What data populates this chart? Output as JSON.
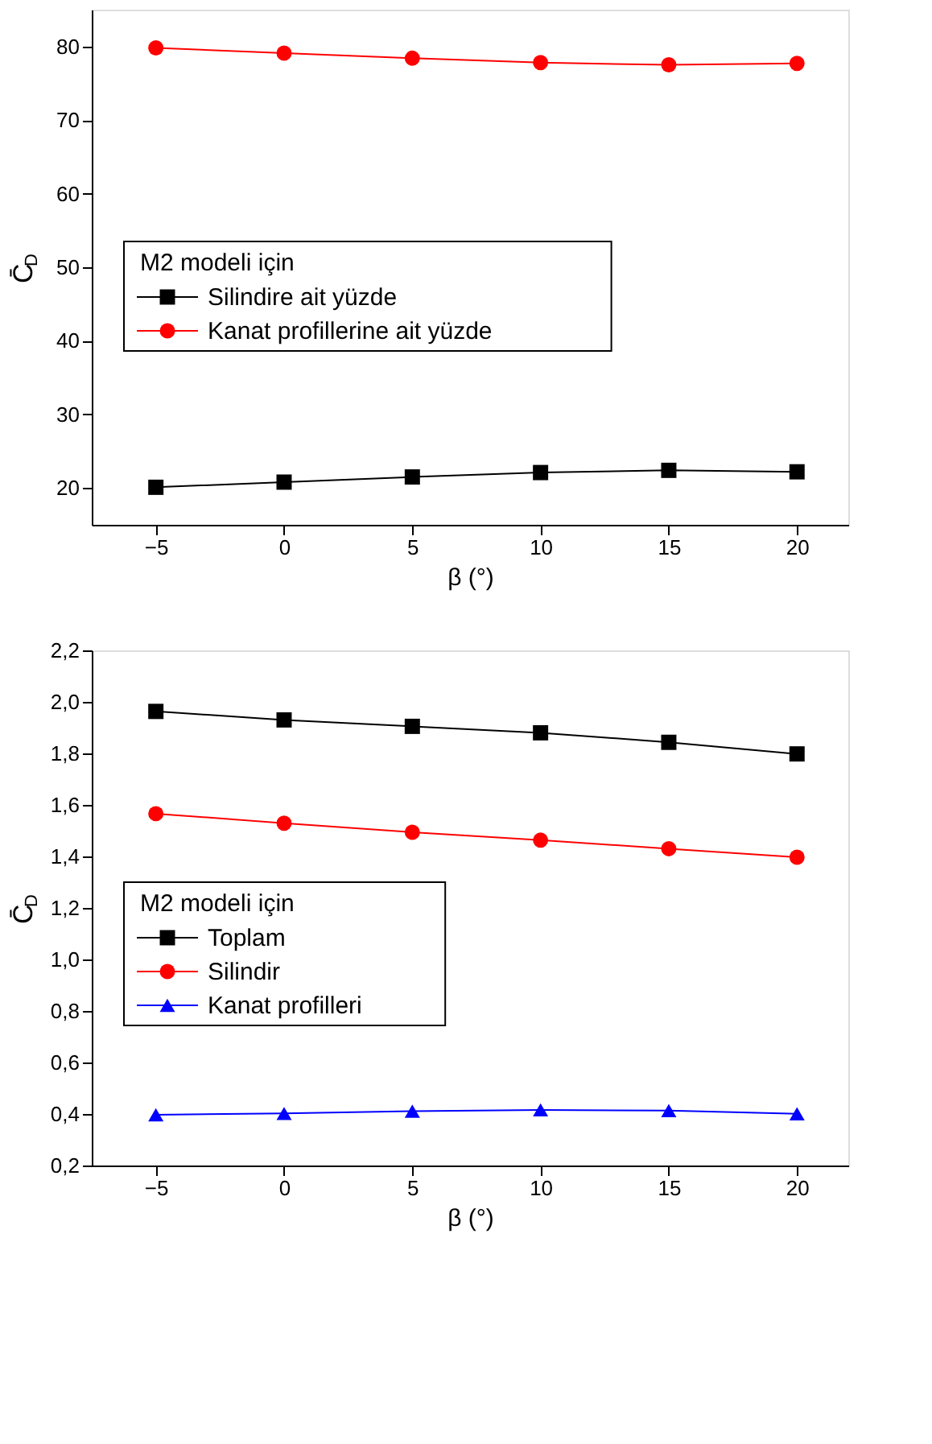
{
  "chart_data": [
    {
      "type": "line",
      "xlabel": "β (°)",
      "ylabel": "C̄$_{D}$",
      "legend_title": "M2 modeli için",
      "legend": "left",
      "marker": "circle",
      "line_style": "solid",
      "grid": false,
      "x": [
        -5,
        0,
        5,
        10,
        15,
        20
      ],
      "xlim": [
        -7.5,
        22
      ],
      "xticks": [
        -5,
        0,
        5,
        10,
        15,
        20
      ],
      "ylim": [
        15,
        85
      ],
      "yticks": [
        20,
        30,
        40,
        50,
        60,
        70,
        80
      ],
      "series": [
        {
          "name": "Silindire ait yüzde",
          "color": "#000000",
          "marker": "square",
          "values": [
            20.1,
            20.8,
            21.5,
            22.1,
            22.4,
            22.2
          ]
        },
        {
          "name": "Kanat profillerine ait yüzde",
          "color": "#ff0000",
          "marker": "circle",
          "values": [
            79.8,
            79.1,
            78.4,
            77.8,
            77.5,
            77.7
          ]
        }
      ]
    },
    {
      "type": "line",
      "xlabel": "β (°)",
      "ylabel": "C̄$_{D}$",
      "legend_title": "M2 modeli için",
      "legend": "left",
      "marker": "circle",
      "line_style": "solid",
      "grid": false,
      "x": [
        -5,
        0,
        5,
        10,
        15,
        20
      ],
      "xlim": [
        -7.5,
        22
      ],
      "xticks": [
        -5,
        0,
        5,
        10,
        15,
        20
      ],
      "ylim": [
        0.2,
        2.2
      ],
      "yticks": [
        {
          "value": 0.2,
          "label": "0,2"
        },
        {
          "value": 0.4,
          "label": "0,4"
        },
        {
          "value": 0.6,
          "label": "0,6"
        },
        {
          "value": 0.8,
          "label": "0,8"
        },
        {
          "value": 1.0,
          "label": "1,0"
        },
        {
          "value": 1.2,
          "label": "1,2"
        },
        {
          "value": 1.4,
          "label": "1,4"
        },
        {
          "value": 1.6,
          "label": "1,6"
        },
        {
          "value": 1.8,
          "label": "1,8"
        },
        {
          "value": 2.0,
          "label": "2,0"
        },
        {
          "value": 2.2,
          "label": "2,2"
        }
      ],
      "series": [
        {
          "name": "Toplam",
          "color": "#000000",
          "marker": "square",
          "values": [
            1.963,
            1.93,
            1.905,
            1.88,
            1.843,
            1.798
          ]
        },
        {
          "name": "Silindir",
          "color": "#ff0000",
          "marker": "circle",
          "values": [
            1.566,
            1.529,
            1.494,
            1.463,
            1.43,
            1.397
          ]
        },
        {
          "name": "Kanat profilleri",
          "color": "#0000ff",
          "marker": "triangle",
          "values": [
            0.397,
            0.402,
            0.411,
            0.416,
            0.413,
            0.401
          ]
        }
      ]
    }
  ]
}
